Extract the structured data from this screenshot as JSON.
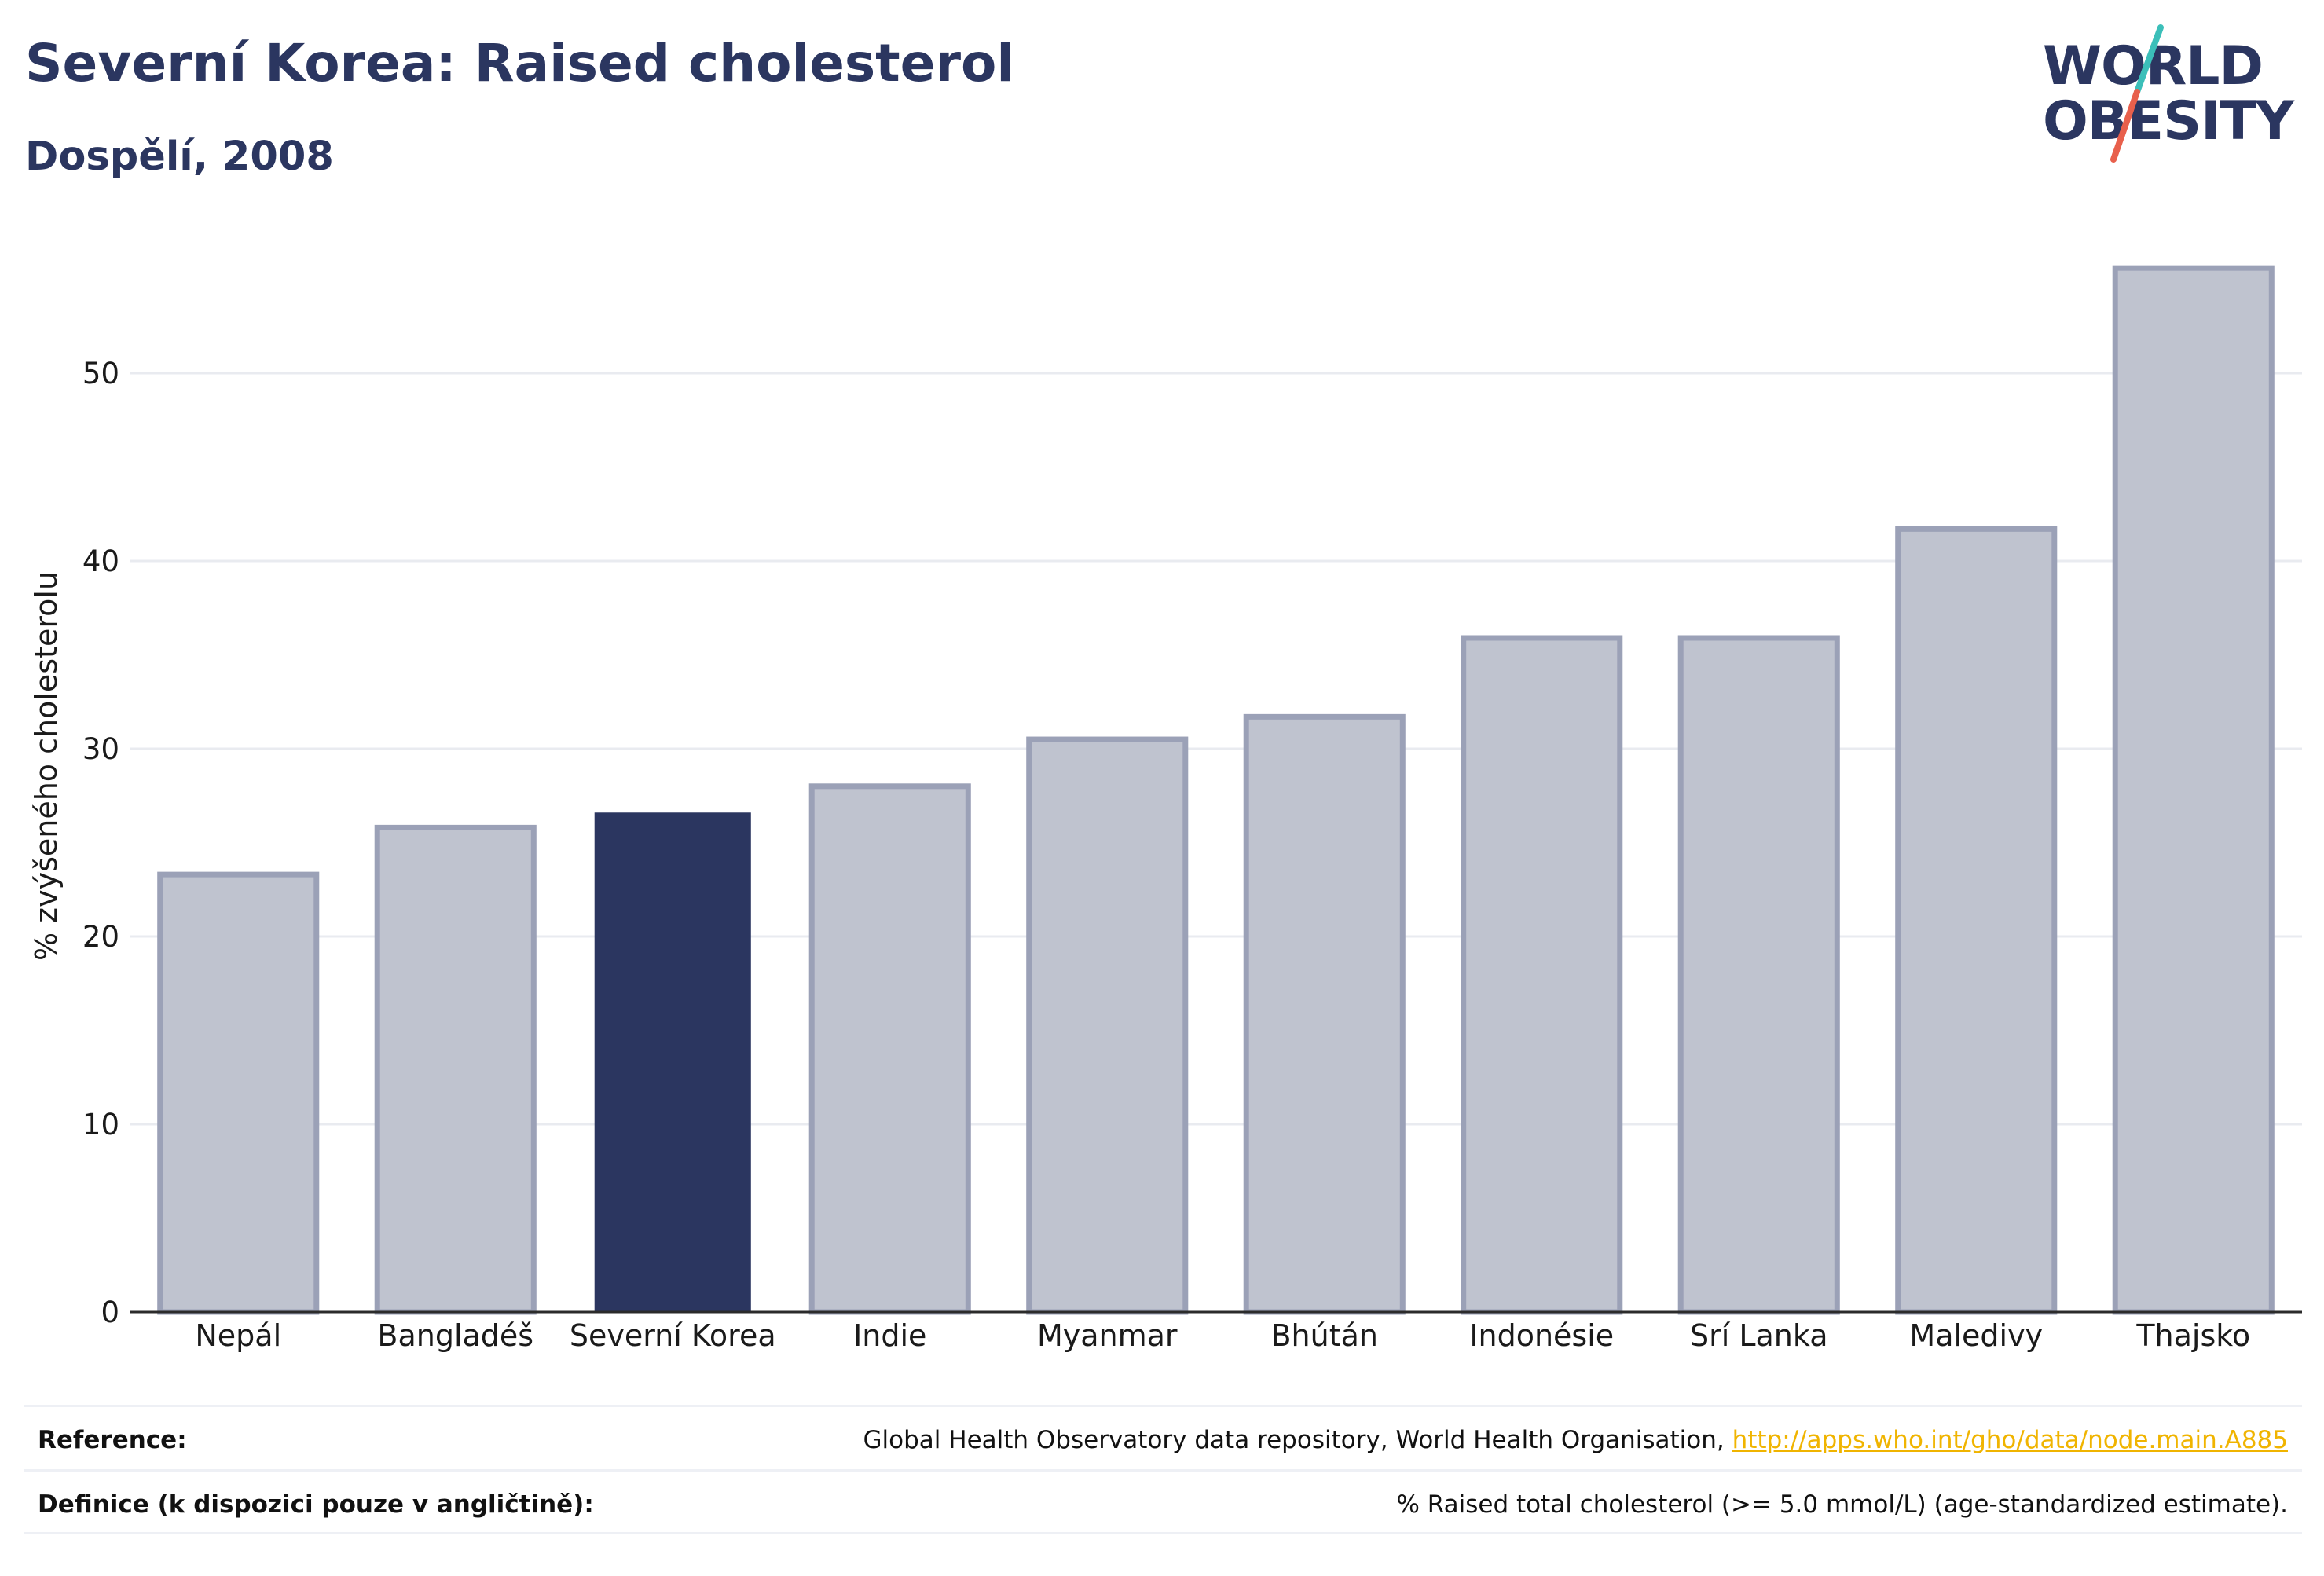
{
  "header": {
    "title": "Severní Korea: Raised cholesterol",
    "subtitle": "Dospělí, 2008"
  },
  "logo": {
    "line1": "WORLD",
    "line2": "OBESITY",
    "slash_colors": [
      "#3bbfb9",
      "#e8604c"
    ]
  },
  "colors": {
    "highlight": "#2b3660",
    "bar_fill": "#bfc3cf",
    "bar_stroke": "#9ba1b7",
    "grid": "#e9ebf0",
    "axis": "#2b2b2b",
    "link": "#f0b400"
  },
  "chart_data": {
    "type": "bar",
    "categories": [
      "Nepál",
      "Bangladéš",
      "Severní Korea",
      "Indie",
      "Myanmar",
      "Bhútán",
      "Indonésie",
      "Srí Lanka",
      "Maledivy",
      "Thajsko"
    ],
    "values": [
      23.3,
      25.8,
      26.6,
      28.0,
      30.5,
      31.7,
      35.9,
      35.9,
      41.7,
      55.6
    ],
    "highlight_category": "Severní Korea",
    "ylabel": "% zvýšeného cholesterolu",
    "xlabel": "",
    "ylim": [
      0,
      58
    ],
    "yticks": [
      0,
      10,
      20,
      30,
      40,
      50
    ],
    "grid": true
  },
  "footer": {
    "reference_label": "Reference:",
    "reference_text": "Global Health Observatory data repository, World Health Organisation, ",
    "reference_link": "http://apps.who.int/gho/data/node.main.A885",
    "definition_label": "Definice (k dispozici pouze v angličtině):",
    "definition_text": "% Raised total cholesterol (>= 5.0 mmol/L) (age-standardized estimate)."
  }
}
